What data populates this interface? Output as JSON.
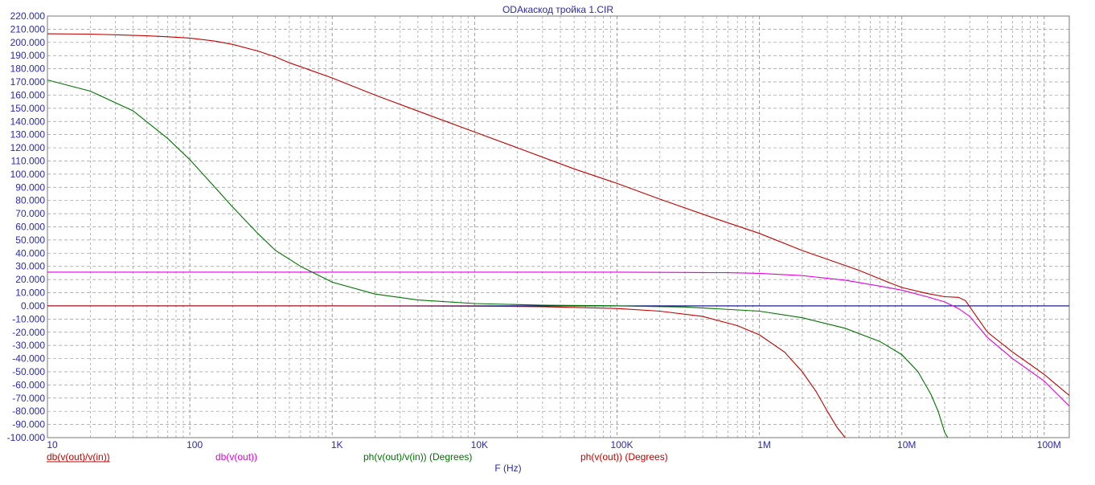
{
  "chart_data": {
    "type": "line",
    "title": "ODAкаскод тройка 1.CIR",
    "xlabel": "F (Hz)",
    "ylabel": "",
    "xscale": "log",
    "xlim": [
      10,
      150000000
    ],
    "ylim": [
      -100,
      220
    ],
    "grid": true,
    "legend_position": "bottom",
    "colors": {
      "axis_text": "#2a2aaa",
      "grid": "#9a9a9a",
      "zero_line": "#00008b"
    },
    "x_tick_labels": [
      {
        "x": 10,
        "label": "10"
      },
      {
        "x": 100,
        "label": "100"
      },
      {
        "x": 1000,
        "label": "1K"
      },
      {
        "x": 10000,
        "label": "10K"
      },
      {
        "x": 100000,
        "label": "100K"
      },
      {
        "x": 1000000,
        "label": "1M"
      },
      {
        "x": 10000000,
        "label": "10M"
      },
      {
        "x": 100000000,
        "label": "100M"
      }
    ],
    "y_tick_labels": [
      {
        "y": 220,
        "label": "220.000"
      },
      {
        "y": 210,
        "label": "210.000"
      },
      {
        "y": 200,
        "label": "200.000"
      },
      {
        "y": 190,
        "label": "190.000"
      },
      {
        "y": 180,
        "label": "180.000"
      },
      {
        "y": 170,
        "label": "170.000"
      },
      {
        "y": 160,
        "label": "160.000"
      },
      {
        "y": 150,
        "label": "150.000"
      },
      {
        "y": 140,
        "label": "140.000"
      },
      {
        "y": 130,
        "label": "130.000"
      },
      {
        "y": 120,
        "label": "120.000"
      },
      {
        "y": 110,
        "label": "110.000"
      },
      {
        "y": 100,
        "label": "100.000"
      },
      {
        "y": 90,
        "label": "90.000"
      },
      {
        "y": 80,
        "label": "80.000"
      },
      {
        "y": 70,
        "label": "70.000"
      },
      {
        "y": 60,
        "label": "60.000"
      },
      {
        "y": 50,
        "label": "50.000"
      },
      {
        "y": 40,
        "label": "40.000"
      },
      {
        "y": 30,
        "label": "30.000"
      },
      {
        "y": 20,
        "label": "20.000"
      },
      {
        "y": 10,
        "label": "10.000"
      },
      {
        "y": 0,
        "label": "0.000"
      },
      {
        "y": -10,
        "label": "-10.000"
      },
      {
        "y": -20,
        "label": "-20.000"
      },
      {
        "y": -30,
        "label": "-30.000"
      },
      {
        "y": -40,
        "label": "-40.000"
      },
      {
        "y": -50,
        "label": "-50.000"
      },
      {
        "y": -60,
        "label": "-60.000"
      },
      {
        "y": -70,
        "label": "-70.000"
      },
      {
        "y": -80,
        "label": "-80.000"
      },
      {
        "y": -90,
        "label": "-90.000"
      },
      {
        "y": -100,
        "label": "-100.000"
      }
    ],
    "series": [
      {
        "name": "db(v(out)/v(in))",
        "color": "#c00000",
        "points": [
          [
            10,
            206.5
          ],
          [
            20,
            206.3
          ],
          [
            30,
            205.8
          ],
          [
            50,
            205
          ],
          [
            70,
            204.3
          ],
          [
            100,
            203.3
          ],
          [
            150,
            201
          ],
          [
            200,
            198.5
          ],
          [
            300,
            193.5
          ],
          [
            400,
            189
          ],
          [
            500,
            184.5
          ],
          [
            700,
            179
          ],
          [
            1000,
            173
          ],
          [
            2000,
            160
          ],
          [
            5000,
            144
          ],
          [
            10000,
            132
          ],
          [
            20000,
            120
          ],
          [
            50000,
            104
          ],
          [
            100000,
            93
          ],
          [
            200000,
            81
          ],
          [
            500000,
            66
          ],
          [
            1000000,
            55
          ],
          [
            2000000,
            42
          ],
          [
            5000000,
            27
          ],
          [
            8000000,
            18
          ],
          [
            10000000,
            14
          ],
          [
            15000000,
            9.5
          ],
          [
            20000000,
            7
          ],
          [
            25000000,
            6.5
          ],
          [
            28000000,
            4
          ],
          [
            40000000,
            -20
          ],
          [
            60000000,
            -35
          ],
          [
            100000000,
            -52
          ],
          [
            150000000,
            -68
          ]
        ]
      },
      {
        "name": "db(v(out))",
        "color": "#e000e0",
        "points": [
          [
            10,
            25.6
          ],
          [
            100,
            25.6
          ],
          [
            1000,
            25.6
          ],
          [
            10000,
            25.6
          ],
          [
            100000,
            25.6
          ],
          [
            300000,
            25.4
          ],
          [
            600000,
            25.2
          ],
          [
            1000000,
            24.7
          ],
          [
            2000000,
            23
          ],
          [
            4000000,
            19.5
          ],
          [
            7000000,
            15
          ],
          [
            10000000,
            12
          ],
          [
            15000000,
            7
          ],
          [
            20000000,
            3
          ],
          [
            25000000,
            -2
          ],
          [
            30000000,
            -8
          ],
          [
            40000000,
            -24
          ],
          [
            60000000,
            -40
          ],
          [
            100000000,
            -57
          ],
          [
            150000000,
            -76
          ]
        ]
      },
      {
        "name": "ph(v(out)/v(in)) (Degrees)",
        "color": "#007000",
        "points": [
          [
            10,
            171.5
          ],
          [
            20,
            163
          ],
          [
            40,
            148
          ],
          [
            70,
            127
          ],
          [
            100,
            111
          ],
          [
            150,
            90
          ],
          [
            200,
            75
          ],
          [
            300,
            55
          ],
          [
            400,
            42
          ],
          [
            600,
            30
          ],
          [
            1000,
            18
          ],
          [
            2000,
            9
          ],
          [
            4000,
            4.5
          ],
          [
            10000,
            1.8
          ],
          [
            30000,
            0.5
          ],
          [
            100000,
            0
          ],
          [
            300000,
            -0.8
          ],
          [
            1000000,
            -4
          ],
          [
            2000000,
            -9
          ],
          [
            4000000,
            -17
          ],
          [
            7000000,
            -27
          ],
          [
            10000000,
            -37
          ],
          [
            13000000,
            -50
          ],
          [
            16000000,
            -67
          ],
          [
            18000000,
            -80
          ],
          [
            20000000,
            -96
          ],
          [
            21000000,
            -100
          ]
        ]
      },
      {
        "name": "ph(v(out)) (Degrees)",
        "color": "#c00000",
        "points": [
          [
            10,
            0
          ],
          [
            1000,
            0
          ],
          [
            10000,
            -0.2
          ],
          [
            30000,
            -0.6
          ],
          [
            100000,
            -2
          ],
          [
            200000,
            -4
          ],
          [
            400000,
            -8
          ],
          [
            700000,
            -15
          ],
          [
            1000000,
            -22
          ],
          [
            1500000,
            -35
          ],
          [
            2000000,
            -50
          ],
          [
            2500000,
            -65
          ],
          [
            3000000,
            -80
          ],
          [
            3500000,
            -92
          ],
          [
            4000000,
            -100
          ]
        ]
      }
    ]
  }
}
